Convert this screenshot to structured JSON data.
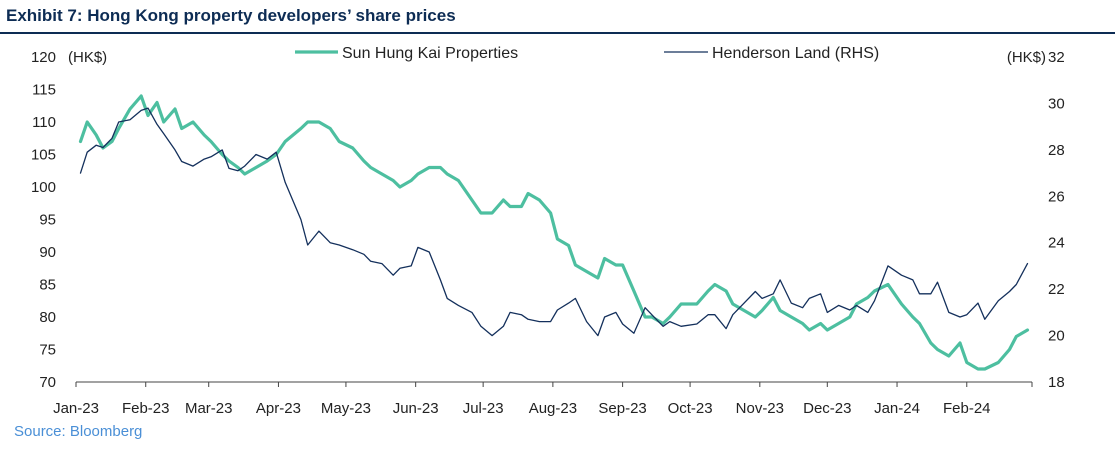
{
  "header": {
    "title": "Exhibit 7: Hong Kong property developers’ share prices"
  },
  "footer": {
    "source": "Source: Bloomberg"
  },
  "chart_data": {
    "type": "line",
    "xlabel": "",
    "ylabel_left": "(HK$)",
    "ylabel_right": "(HK$)",
    "x_ticks": [
      "Jan-23",
      "Feb-23",
      "Mar-23",
      "Apr-23",
      "May-23",
      "Jun-23",
      "Jul-23",
      "Aug-23",
      "Sep-23",
      "Oct-23",
      "Nov-23",
      "Dec-23",
      "Jan-24",
      "Feb-24"
    ],
    "y_left": {
      "min": 70,
      "max": 120,
      "ticks": [
        70,
        75,
        80,
        85,
        90,
        95,
        100,
        105,
        110,
        115,
        120
      ]
    },
    "y_right": {
      "min": 18,
      "max": 32,
      "ticks": [
        18,
        20,
        22,
        24,
        26,
        28,
        30,
        32
      ]
    },
    "legend": {
      "position": "top"
    },
    "grid": false,
    "colors": {
      "shkp": "#4dbfa0",
      "henderson": "#14305c"
    },
    "series": [
      {
        "name": "Sun Hung Kai Properties",
        "axis": "left",
        "x": [
          "2023-01-03",
          "2023-01-06",
          "2023-01-10",
          "2023-01-13",
          "2023-01-17",
          "2023-01-20",
          "2023-01-25",
          "2023-01-30",
          "2023-02-02",
          "2023-02-06",
          "2023-02-09",
          "2023-02-14",
          "2023-02-17",
          "2023-02-22",
          "2023-02-27",
          "2023-03-02",
          "2023-03-07",
          "2023-03-10",
          "2023-03-14",
          "2023-03-17",
          "2023-03-22",
          "2023-03-27",
          "2023-03-31",
          "2023-04-04",
          "2023-04-11",
          "2023-04-14",
          "2023-04-19",
          "2023-04-24",
          "2023-04-28",
          "2023-05-04",
          "2023-05-09",
          "2023-05-12",
          "2023-05-17",
          "2023-05-22",
          "2023-05-25",
          "2023-05-30",
          "2023-06-02",
          "2023-06-07",
          "2023-06-12",
          "2023-06-15",
          "2023-06-20",
          "2023-06-26",
          "2023-06-30",
          "2023-07-05",
          "2023-07-10",
          "2023-07-13",
          "2023-07-18",
          "2023-07-21",
          "2023-07-26",
          "2023-07-31",
          "2023-08-03",
          "2023-08-08",
          "2023-08-11",
          "2023-08-16",
          "2023-08-21",
          "2023-08-24",
          "2023-08-29",
          "2023-09-01",
          "2023-09-06",
          "2023-09-11",
          "2023-09-14",
          "2023-09-19",
          "2023-09-22",
          "2023-09-27",
          "2023-10-04",
          "2023-10-09",
          "2023-10-12",
          "2023-10-17",
          "2023-10-20",
          "2023-10-25",
          "2023-10-30",
          "2023-11-02",
          "2023-11-07",
          "2023-11-10",
          "2023-11-15",
          "2023-11-20",
          "2023-11-23",
          "2023-11-28",
          "2023-12-01",
          "2023-12-06",
          "2023-12-11",
          "2023-12-14",
          "2023-12-19",
          "2023-12-22",
          "2023-12-28",
          "2024-01-03",
          "2024-01-08",
          "2024-01-11",
          "2024-01-16",
          "2024-01-19",
          "2024-01-24",
          "2024-01-29",
          "2024-02-01",
          "2024-02-06",
          "2024-02-09",
          "2024-02-15",
          "2024-02-20",
          "2024-02-23",
          "2024-02-28"
        ],
        "values": [
          107,
          110,
          108,
          106,
          107,
          109,
          112,
          114,
          111,
          113,
          110,
          112,
          109,
          110,
          108,
          107,
          105,
          104,
          103,
          102,
          103,
          104,
          105,
          107,
          109,
          110,
          110,
          109,
          107,
          106,
          104,
          103,
          102,
          101,
          100,
          101,
          102,
          103,
          103,
          102,
          101,
          98,
          96,
          96,
          98,
          97,
          97,
          99,
          98,
          96,
          92,
          91,
          88,
          87,
          86,
          89,
          88,
          88,
          84,
          80,
          80,
          79,
          80,
          82,
          82,
          84,
          85,
          84,
          82,
          81,
          80,
          81,
          83,
          81,
          80,
          79,
          78,
          79,
          78,
          79,
          80,
          82,
          83,
          84,
          85,
          82,
          80,
          79,
          76,
          75,
          74,
          76,
          73,
          72,
          72,
          73,
          75,
          77,
          78
        ],
        "values_check_note": null
      },
      {
        "name": "Henderson Land (RHS)",
        "axis": "right",
        "x": [
          "2023-01-03",
          "2023-01-06",
          "2023-01-10",
          "2023-01-13",
          "2023-01-17",
          "2023-01-20",
          "2023-01-25",
          "2023-01-30",
          "2023-02-02",
          "2023-02-06",
          "2023-02-09",
          "2023-02-14",
          "2023-02-17",
          "2023-02-22",
          "2023-02-27",
          "2023-03-02",
          "2023-03-07",
          "2023-03-10",
          "2023-03-14",
          "2023-03-17",
          "2023-03-22",
          "2023-03-27",
          "2023-03-31",
          "2023-04-04",
          "2023-04-11",
          "2023-04-14",
          "2023-04-19",
          "2023-04-24",
          "2023-04-28",
          "2023-05-04",
          "2023-05-09",
          "2023-05-12",
          "2023-05-17",
          "2023-05-22",
          "2023-05-25",
          "2023-05-30",
          "2023-06-02",
          "2023-06-07",
          "2023-06-12",
          "2023-06-15",
          "2023-06-20",
          "2023-06-26",
          "2023-06-30",
          "2023-07-05",
          "2023-07-10",
          "2023-07-13",
          "2023-07-18",
          "2023-07-21",
          "2023-07-26",
          "2023-07-31",
          "2023-08-03",
          "2023-08-08",
          "2023-08-11",
          "2023-08-16",
          "2023-08-21",
          "2023-08-24",
          "2023-08-29",
          "2023-09-01",
          "2023-09-06",
          "2023-09-11",
          "2023-09-14",
          "2023-09-19",
          "2023-09-22",
          "2023-09-27",
          "2023-10-04",
          "2023-10-09",
          "2023-10-12",
          "2023-10-17",
          "2023-10-20",
          "2023-10-25",
          "2023-10-30",
          "2023-11-02",
          "2023-11-07",
          "2023-11-10",
          "2023-11-15",
          "2023-11-20",
          "2023-11-23",
          "2023-11-28",
          "2023-12-01",
          "2023-12-06",
          "2023-12-11",
          "2023-12-14",
          "2023-12-19",
          "2023-12-22",
          "2023-12-28",
          "2024-01-03",
          "2024-01-08",
          "2024-01-11",
          "2024-01-16",
          "2024-01-19",
          "2024-01-24",
          "2024-01-29",
          "2024-02-01",
          "2024-02-06",
          "2024-02-09",
          "2024-02-15",
          "2024-02-20",
          "2024-02-23",
          "2024-02-28"
        ],
        "values": [
          27.0,
          27.9,
          28.2,
          28.1,
          28.5,
          29.2,
          29.3,
          29.7,
          29.8,
          29.1,
          28.7,
          28.0,
          27.5,
          27.3,
          27.6,
          27.7,
          28.0,
          27.2,
          27.1,
          27.3,
          27.8,
          27.6,
          27.9,
          26.6,
          25.0,
          23.9,
          24.5,
          24.0,
          23.9,
          23.7,
          23.5,
          23.2,
          23.1,
          22.6,
          22.9,
          23.0,
          23.8,
          23.6,
          22.4,
          21.6,
          21.3,
          21.0,
          20.4,
          20.0,
          20.4,
          21.0,
          20.9,
          20.7,
          20.6,
          20.6,
          21.1,
          21.4,
          21.6,
          20.6,
          20.0,
          20.8,
          21.0,
          20.5,
          20.1,
          21.2,
          20.9,
          20.4,
          20.6,
          20.4,
          20.5,
          20.9,
          20.9,
          20.3,
          20.9,
          21.4,
          21.9,
          21.6,
          21.8,
          22.4,
          21.4,
          21.2,
          21.6,
          21.8,
          21.0,
          21.3,
          21.1,
          21.3,
          21.0,
          21.5,
          23.0,
          22.6,
          22.4,
          21.8,
          21.8,
          22.3,
          21.0,
          20.8,
          20.9,
          21.4,
          20.7,
          21.5,
          21.9,
          22.2,
          23.1
        ],
        "values_check_note": null
      }
    ]
  }
}
